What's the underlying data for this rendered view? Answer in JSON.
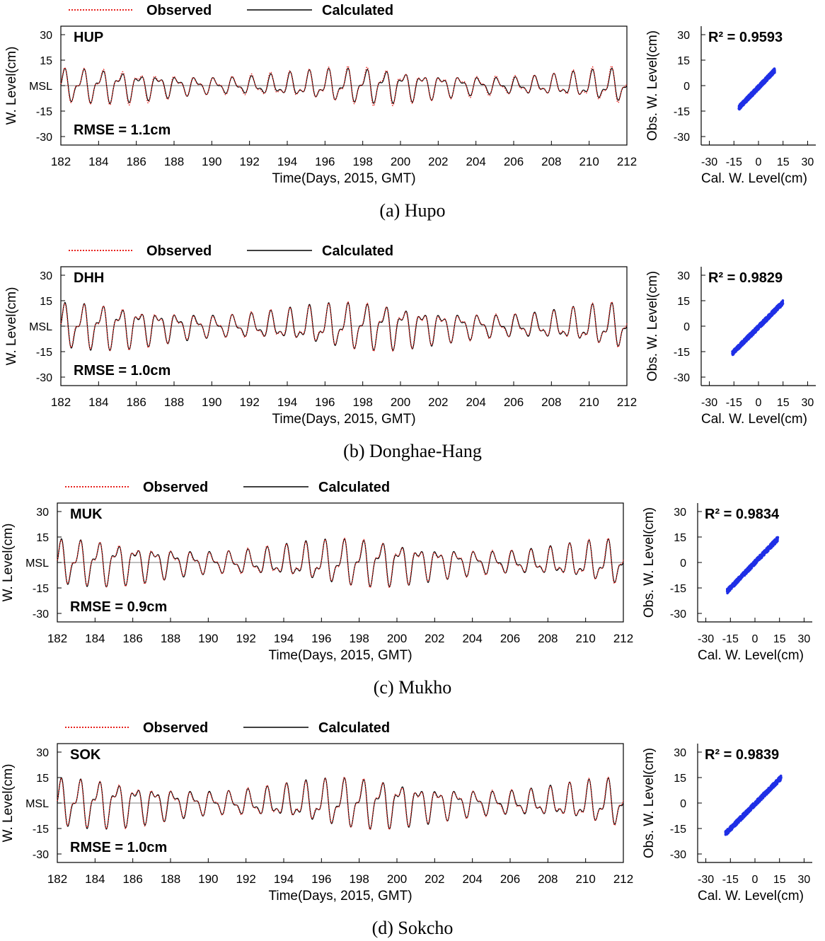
{
  "legend": {
    "observed": "Observed",
    "calculated": "Calculated"
  },
  "colors": {
    "observed": "#e8231f",
    "calculated": "#000000",
    "scatter": "#1f2fe6",
    "axis": "#000000"
  },
  "time_axis": {
    "xlabel": "Time(Days, 2015, GMT)",
    "ylabel": "W. Level(cm)",
    "xlim": [
      182,
      212
    ],
    "ylim": [
      -35,
      35
    ],
    "xticks": [
      "182",
      "184",
      "186",
      "188",
      "190",
      "192",
      "194",
      "196",
      "198",
      "200",
      "202",
      "204",
      "206",
      "208",
      "210",
      "212"
    ],
    "yticks": [
      "30",
      "15",
      "MSL",
      "-15",
      "-30"
    ]
  },
  "scatter_axis": {
    "xlabel": "Cal. W. Level(cm)",
    "ylabel": "Obs. W. Level(cm)",
    "xlim": [
      -35,
      35
    ],
    "ylim": [
      -35,
      35
    ],
    "xticks": [
      "-30",
      "-15",
      "0",
      "15",
      "30"
    ],
    "yticks": [
      "30",
      "15",
      "0",
      "-15",
      "-30"
    ]
  },
  "chart_data": [
    {
      "type": "line",
      "caption": "(a) Hupo",
      "station": "HUP",
      "rmse_label": "RMSE = 1.1cm",
      "x": [
        182,
        212
      ],
      "series": [
        {
          "name": "Observed",
          "style": "dotted",
          "description_values": {
            "max_high": 11,
            "max_low": -13
          }
        },
        {
          "name": "Calculated",
          "style": "solid",
          "description_values": {
            "max_high": 10,
            "max_low": -12
          }
        }
      ]
    },
    {
      "type": "scatter",
      "r2_label": "R² = 0.9593",
      "points_range": {
        "x": [
          -12,
          10
        ],
        "y": [
          -13,
          9
        ]
      }
    },
    {
      "type": "line",
      "caption": "(b) Donghae-Hang",
      "station": "DHH",
      "rmse_label": "RMSE = 1.0cm",
      "x": [
        182,
        212
      ],
      "series": [
        {
          "name": "Observed",
          "style": "dotted",
          "description_values": {
            "max_high": 14,
            "max_low": -16
          }
        },
        {
          "name": "Calculated",
          "style": "solid",
          "description_values": {
            "max_high": 14,
            "max_low": -16
          }
        }
      ]
    },
    {
      "type": "scatter",
      "r2_label": "R² = 0.9829",
      "points_range": {
        "x": [
          -16,
          15
        ],
        "y": [
          -16,
          14
        ]
      }
    },
    {
      "type": "line",
      "caption": "(c) Mukho",
      "station": "MUK",
      "rmse_label": "RMSE = 0.9cm",
      "x": [
        182,
        212
      ],
      "series": [
        {
          "name": "Observed",
          "style": "dotted",
          "description_values": {
            "max_high": 14,
            "max_low": -16
          }
        },
        {
          "name": "Calculated",
          "style": "solid",
          "description_values": {
            "max_high": 14,
            "max_low": -16
          }
        }
      ]
    },
    {
      "type": "scatter",
      "r2_label": "R² = 0.9834",
      "points_range": {
        "x": [
          -17,
          14
        ],
        "y": [
          -17,
          14
        ]
      }
    },
    {
      "type": "line",
      "caption": "(d) Sokcho",
      "station": "SOK",
      "rmse_label": "RMSE = 1.0cm",
      "x": [
        182,
        212
      ],
      "series": [
        {
          "name": "Observed",
          "style": "dotted",
          "description_values": {
            "max_high": 15,
            "max_low": -17
          }
        },
        {
          "name": "Calculated",
          "style": "solid",
          "description_values": {
            "max_high": 15,
            "max_low": -17
          }
        }
      ]
    },
    {
      "type": "scatter",
      "r2_label": "R² = 0.9839",
      "points_range": {
        "x": [
          -18,
          16
        ],
        "y": [
          -18,
          15
        ]
      }
    }
  ]
}
